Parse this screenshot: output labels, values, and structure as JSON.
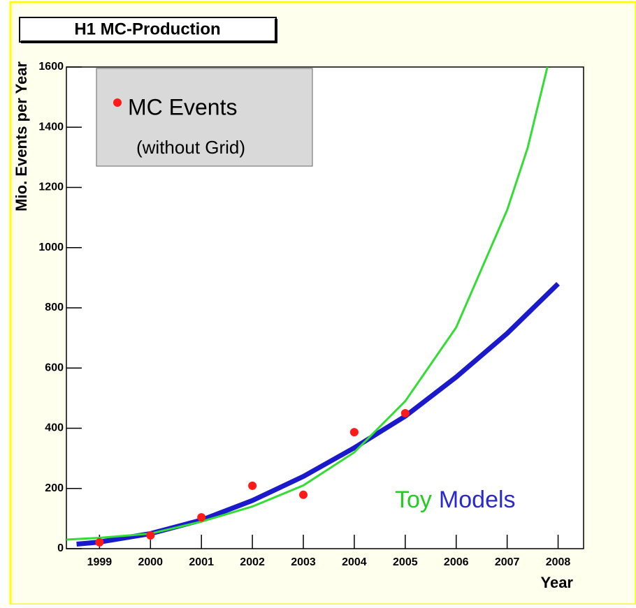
{
  "chart_data": {
    "type": "scatter",
    "title": "H1 MC-Production",
    "xlabel": "Year",
    "ylabel": "Mio. Events per Year",
    "xlim": [
      1998.35,
      2008.5
    ],
    "ylim": [
      0,
      1600
    ],
    "xticks": [
      1999,
      2000,
      2001,
      2002,
      2003,
      2004,
      2005,
      2006,
      2007,
      2008
    ],
    "yticks": [
      0,
      200,
      400,
      600,
      800,
      1000,
      1200,
      1400,
      1600
    ],
    "series": [
      {
        "name": "MC Events",
        "color": "#ff1a1a",
        "x": [
          1999,
          2000,
          2001,
          2002,
          2003,
          2004,
          2005
        ],
        "values": [
          21,
          44,
          104,
          209,
          179,
          387,
          450
        ]
      }
    ],
    "legend_subtitle": "(without Grid)",
    "fits": [
      {
        "color": "#1a1acc",
        "x": [
          1998.55,
          1999,
          2000,
          2001,
          2002,
          2003,
          2004,
          2005,
          2006,
          2007,
          2008
        ],
        "values": [
          15,
          22,
          50,
          95,
          160,
          240,
          335,
          440,
          570,
          715,
          880
        ]
      },
      {
        "color": "#33dd33",
        "x": [
          1998.35,
          1999,
          2000,
          2001,
          2002,
          2003,
          2004,
          2005,
          2006,
          2007,
          2007.4,
          2007.79
        ],
        "values": [
          30,
          36,
          50,
          90,
          140,
          210,
          320,
          490,
          735,
          1125,
          1330,
          1600
        ]
      }
    ],
    "annotation": [
      {
        "text": "Toy",
        "color": "#22cc22"
      },
      {
        "text": "Models",
        "color": "#2a2acc"
      }
    ]
  }
}
